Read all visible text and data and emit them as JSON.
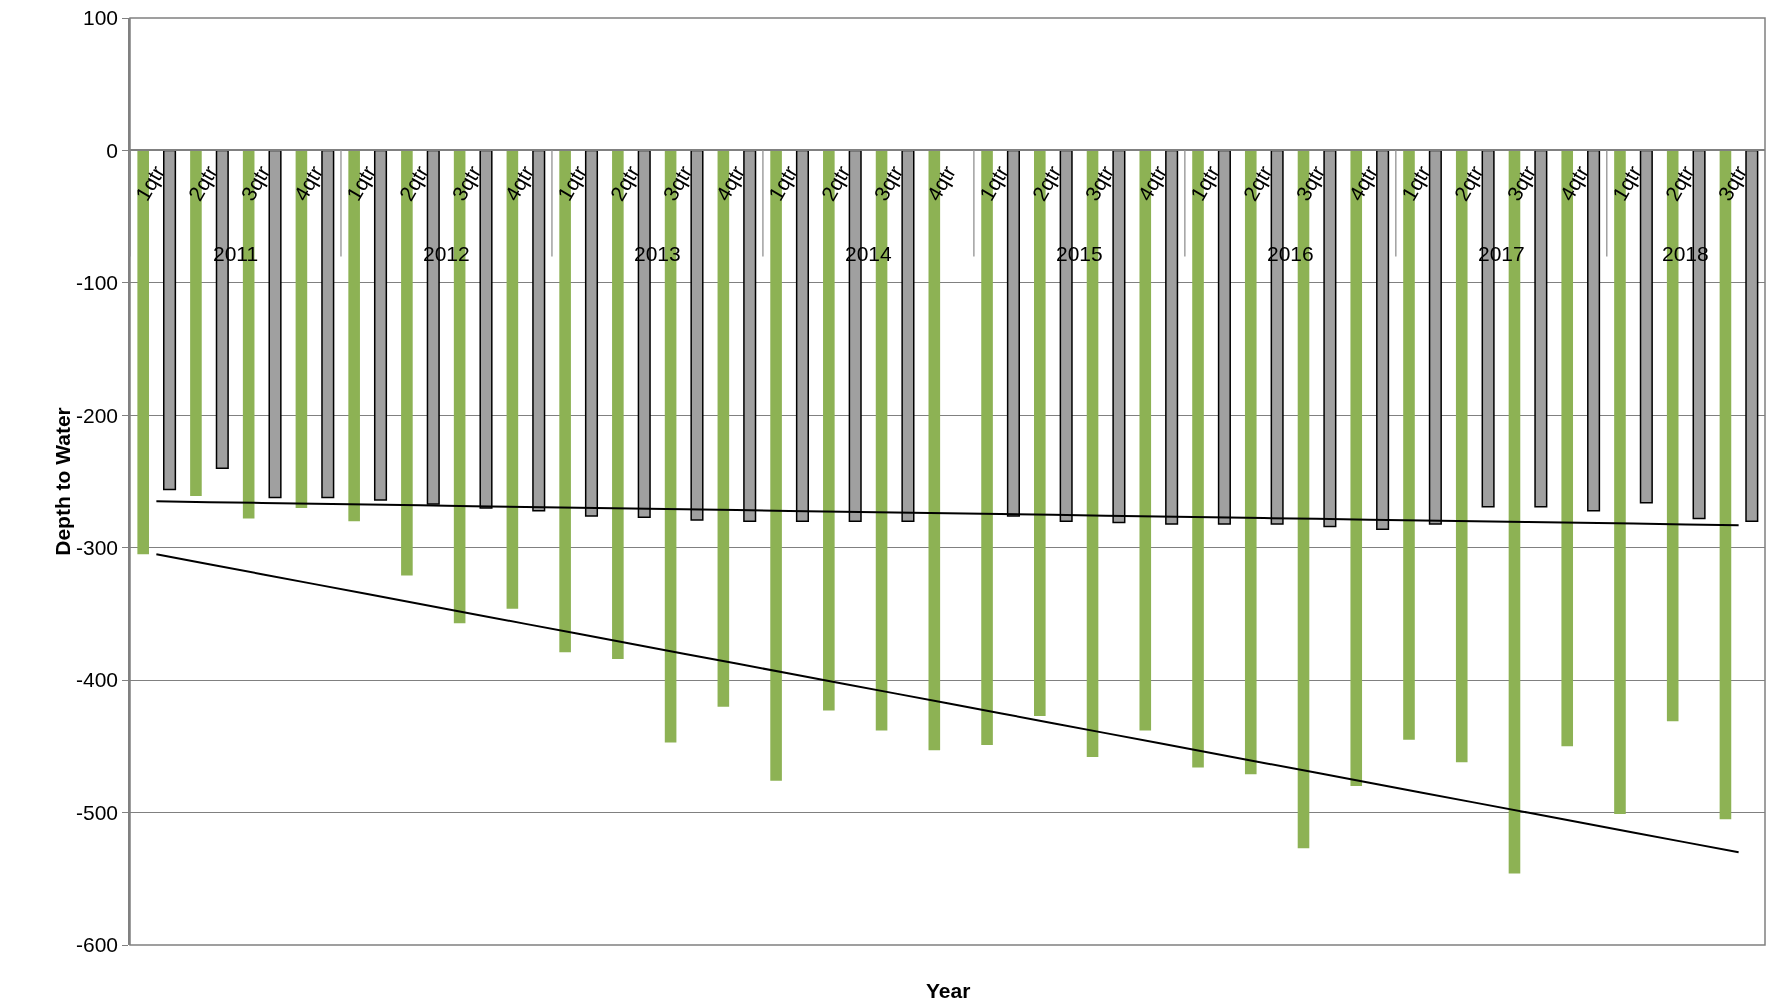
{
  "chart_data": {
    "type": "bar",
    "xlabel": "Year",
    "ylabel": "Depth to Water",
    "categories": [
      "1qtr",
      "2qtr",
      "3qtr",
      "4qtr",
      "1qtr",
      "2qtr",
      "3qtr",
      "4qtr",
      "1qtr",
      "2qtr",
      "3qtr",
      "4qtr",
      "1qtr",
      "2qtr",
      "3qtr",
      "4qtr",
      "1qtr",
      "2qtr",
      "3qtr",
      "4qtr",
      "1qtr",
      "2qtr",
      "3qtr",
      "4qtr",
      "1qtr",
      "2qtr",
      "3qtr",
      "4qtr",
      "1qtr",
      "2qtr",
      "3qtr"
    ],
    "series": [
      {
        "color": "#8db254",
        "values": [
          -305,
          -261,
          -278,
          -270,
          -280,
          -321,
          -357,
          -346,
          -379,
          -384,
          -447,
          -420,
          -476,
          -423,
          -438,
          -453,
          -449,
          -427,
          -458,
          -438,
          -466,
          -471,
          -527,
          -480,
          -445,
          -462,
          -546,
          -450,
          -501,
          -431,
          -505
        ]
      },
      {
        "color": "#a0a0a0",
        "values": [
          -256,
          -240,
          -262,
          -262,
          -264,
          -267,
          -270,
          -272,
          -276,
          -277,
          -279,
          -280,
          -280,
          -280,
          -280,
          null,
          -276,
          -280,
          -281,
          -282,
          -282,
          -282,
          -284,
          -286,
          -282,
          -269,
          -269,
          -272,
          -266,
          -278,
          -280
        ]
      },
      {
        "type": "line",
        "color": "#000000",
        "values": [
          -305,
          -312.5,
          -320,
          -327.5,
          -335,
          -342.5,
          -350,
          -357.5,
          -365,
          -372.5,
          -380,
          -387.5,
          -395,
          -402.5,
          -410,
          -417.5,
          -425,
          -432.5,
          -440,
          -447.5,
          -455,
          -462.5,
          -470,
          -477.5,
          -485,
          -492.5,
          -500,
          -507.5,
          -515,
          -522.5,
          -530
        ]
      },
      {
        "type": "line",
        "color": "#000000",
        "values": [
          -265,
          -265.6,
          -266.2,
          -266.8,
          -267.4,
          -268,
          -268.6,
          -269.2,
          -269.8,
          -270.4,
          -271,
          -271.6,
          -272.2,
          -272.8,
          -273.4,
          -274,
          -274.6,
          -275.2,
          -275.8,
          -276.4,
          -277,
          -277.6,
          -278.2,
          -278.8,
          -279.4,
          -280,
          -280.6,
          -281.2,
          -281.8,
          -282.4,
          -283
        ]
      }
    ],
    "annotations": [
      "2011",
      "2012",
      "2013",
      "2014",
      "2015",
      "2016",
      "2017",
      "2018"
    ],
    "ylim": [
      -600,
      100
    ],
    "yticks": [
      -600,
      -500,
      -400,
      -300,
      -200,
      -100,
      0,
      100
    ],
    "grid": "y",
    "marker": "none"
  }
}
